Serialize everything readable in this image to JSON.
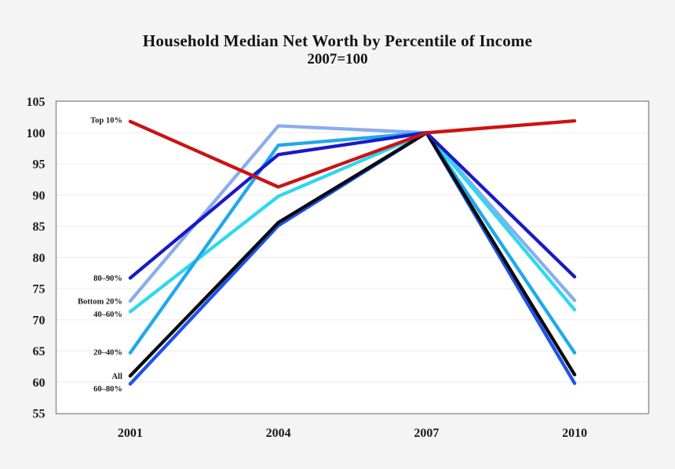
{
  "header": {
    "title": "Household Median Net Worth by Percentile of Income",
    "subtitle": "2007=100"
  },
  "chart_data": {
    "type": "line",
    "title": "Household Median Net Worth by Percentile of Income",
    "subtitle": "2007=100",
    "categories": [
      "2001",
      "2004",
      "2007",
      "2010"
    ],
    "xlabel": "",
    "ylabel": "",
    "ylim": [
      55,
      105
    ],
    "yticks": [
      55,
      60,
      65,
      70,
      75,
      80,
      85,
      90,
      95,
      100,
      105
    ],
    "grid": true,
    "legend_position": "direct-labels-left-of-first-point",
    "plot_background": "#ffffff",
    "page_background": "#f5f4f4",
    "gridline_color": "#f0efee",
    "frame_color": "#9a9a9a",
    "series": [
      {
        "name": "Bottom 20%",
        "color": "#8badeb",
        "values": [
          73.0,
          101.1,
          100,
          73.1
        ],
        "label_dy": 0
      },
      {
        "name": "40–60%",
        "color": "#2ed7f0",
        "values": [
          71.3,
          89.8,
          100,
          71.6
        ],
        "label_dy": 3
      },
      {
        "name": "20–40%",
        "color": "#1fa8ec",
        "values": [
          64.7,
          98.0,
          100,
          64.7
        ],
        "label_dy": -1
      },
      {
        "name": "60–80%",
        "color": "#1e52ee",
        "values": [
          59.7,
          85.1,
          100,
          59.8
        ],
        "label_dy": 6
      },
      {
        "name": "All",
        "color": "#0b0b0b",
        "values": [
          61.0,
          85.6,
          100,
          61.2
        ],
        "label_dy": 0
      },
      {
        "name": "80–90%",
        "color": "#1a19c8",
        "values": [
          76.7,
          96.5,
          100,
          76.9
        ],
        "label_dy": 0
      },
      {
        "name": "Top 10%",
        "color": "#cc1212",
        "values": [
          101.8,
          91.3,
          100,
          101.9
        ],
        "label_dy": -2
      }
    ]
  }
}
